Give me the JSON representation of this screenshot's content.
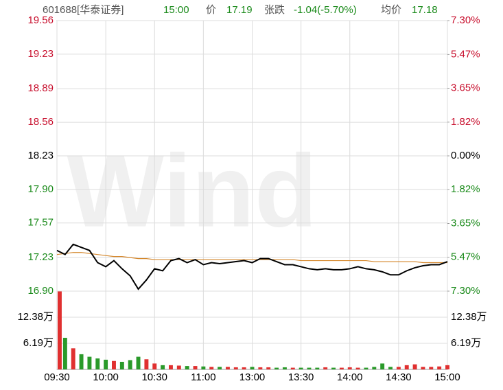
{
  "header": {
    "code": "601688[华泰证券]",
    "time": "15:00",
    "price_label": "价",
    "price": "17.19",
    "change_label": "张跌",
    "change": "-1.04(-5.70%)",
    "avg_label": "均价",
    "avg": "17.18",
    "watermark": "Wind"
  },
  "chart_data": [
    {
      "type": "line",
      "x": [
        "09:30",
        "09:35",
        "09:40",
        "09:45",
        "09:50",
        "09:55",
        "10:00",
        "10:05",
        "10:10",
        "10:15",
        "10:20",
        "10:25",
        "10:30",
        "10:35",
        "10:40",
        "10:45",
        "10:50",
        "10:55",
        "11:00",
        "11:05",
        "11:10",
        "11:15",
        "11:20",
        "11:25",
        "13:00",
        "13:05",
        "13:10",
        "13:15",
        "13:20",
        "13:25",
        "13:30",
        "13:35",
        "13:40",
        "13:45",
        "13:50",
        "13:55",
        "14:00",
        "14:05",
        "14:10",
        "14:15",
        "14:20",
        "14:25",
        "14:30",
        "14:35",
        "14:40",
        "14:45",
        "14:50",
        "14:55",
        "15:00"
      ],
      "xticks": [
        "09:30",
        "10:00",
        "10:30",
        "11:00",
        "13:00",
        "13:30",
        "14:00",
        "14:30",
        "15:00"
      ],
      "ylim": [
        16.9,
        19.56
      ],
      "yticks": [
        {
          "value": 16.9,
          "label": "16.90"
        },
        17.23,
        17.57,
        {
          "value": 17.9,
          "label": "17.90"
        },
        18.23,
        18.56,
        18.89,
        19.23,
        19.56
      ],
      "y2lim": [
        -7.3,
        7.3
      ],
      "y2ticks": [
        {
          "value": -7.3,
          "label": "7.30%"
        },
        {
          "value": -5.47,
          "label": "5.47%"
        },
        {
          "value": -3.65,
          "label": "3.65%"
        },
        {
          "value": -1.82,
          "label": "1.82%"
        },
        {
          "value": 0,
          "label": "0.00%"
        },
        {
          "value": 1.82,
          "label": "1.82%"
        },
        {
          "value": 3.65,
          "label": "3.65%"
        },
        {
          "value": 5.47,
          "label": "5.47%"
        },
        {
          "value": 7.3,
          "label": "7.30%"
        }
      ],
      "prev_close": 18.23,
      "up_color": "#c8102e",
      "down_color": "#1a8a1a",
      "flat_color": "#000000",
      "grid": true,
      "series": [
        {
          "color": "#000000",
          "values": [
            17.3,
            17.26,
            17.36,
            17.33,
            17.3,
            17.18,
            17.14,
            17.2,
            17.12,
            17.05,
            16.92,
            17.01,
            17.12,
            17.1,
            17.2,
            17.22,
            17.18,
            17.21,
            17.16,
            17.18,
            17.17,
            17.18,
            17.19,
            17.2,
            17.18,
            17.22,
            17.22,
            17.19,
            17.16,
            17.16,
            17.14,
            17.12,
            17.11,
            17.12,
            17.11,
            17.11,
            17.12,
            17.14,
            17.12,
            17.11,
            17.09,
            17.06,
            17.06,
            17.1,
            17.13,
            17.15,
            17.16,
            17.16,
            17.19
          ]
        },
        {
          "color": "#d4862a",
          "values": [
            17.26,
            17.27,
            17.28,
            17.28,
            17.27,
            17.26,
            17.25,
            17.24,
            17.24,
            17.23,
            17.22,
            17.22,
            17.21,
            17.21,
            17.21,
            17.21,
            17.21,
            17.21,
            17.21,
            17.21,
            17.21,
            17.21,
            17.21,
            17.21,
            17.21,
            17.21,
            17.21,
            17.21,
            17.21,
            17.21,
            17.2,
            17.2,
            17.2,
            17.2,
            17.2,
            17.2,
            17.2,
            17.2,
            17.2,
            17.19,
            17.19,
            17.19,
            17.19,
            17.19,
            17.19,
            17.18,
            17.18,
            17.18,
            17.18
          ]
        }
      ]
    },
    {
      "type": "bar",
      "ylim": [
        0,
        18.57
      ],
      "yticks": [
        {
          "value": 6.19,
          "label": "6.19万"
        },
        {
          "value": 12.38,
          "label": "12.38万"
        }
      ],
      "up_color": "#e03030",
      "down_color": "#2a9a2a",
      "values": [
        18.5,
        7.5,
        5.0,
        3.6,
        3.0,
        2.6,
        2.3,
        2.0,
        1.8,
        2.2,
        3.0,
        2.4,
        1.4,
        1.0,
        1.0,
        0.9,
        0.8,
        0.8,
        0.7,
        0.6,
        0.6,
        0.6,
        0.5,
        0.5,
        0.6,
        0.5,
        0.5,
        0.4,
        0.5,
        0.4,
        0.4,
        0.4,
        0.4,
        0.5,
        0.4,
        0.4,
        0.5,
        0.4,
        0.4,
        0.6,
        1.4,
        0.6,
        0.6,
        1.0,
        1.2,
        0.6,
        0.6,
        0.7,
        1.0
      ]
    }
  ]
}
